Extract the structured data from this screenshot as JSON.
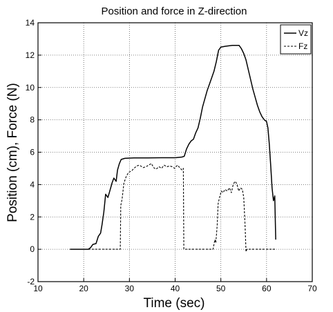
{
  "chart_data": {
    "type": "line",
    "title": "Position and force in Z-direction",
    "xlabel": "Time (sec)",
    "ylabel": "Position (cm), Force (N)",
    "xlim": [
      10,
      70
    ],
    "ylim": [
      -2,
      14
    ],
    "xticks": [
      10,
      20,
      30,
      40,
      50,
      60,
      70
    ],
    "yticks": [
      -2,
      0,
      2,
      4,
      6,
      8,
      10,
      12,
      14
    ],
    "grid": true,
    "legend_position": "top-right",
    "series": [
      {
        "name": "Vz",
        "line_style": "solid",
        "color": "#000000",
        "points": [
          [
            17,
            0
          ],
          [
            21,
            0
          ],
          [
            21.5,
            0.1
          ],
          [
            22,
            0.3
          ],
          [
            22.7,
            0.35
          ],
          [
            23.2,
            0.8
          ],
          [
            23.7,
            1.0
          ],
          [
            24,
            1.5
          ],
          [
            24.4,
            2.3
          ],
          [
            24.8,
            3.4
          ],
          [
            25.3,
            3.2
          ],
          [
            25.7,
            3.6
          ],
          [
            26.2,
            4.1
          ],
          [
            26.6,
            4.4
          ],
          [
            27.1,
            4.2
          ],
          [
            27.4,
            4.9
          ],
          [
            27.8,
            5.3
          ],
          [
            28.2,
            5.55
          ],
          [
            29,
            5.62
          ],
          [
            31,
            5.65
          ],
          [
            34,
            5.65
          ],
          [
            37,
            5.66
          ],
          [
            40,
            5.66
          ],
          [
            41.5,
            5.7
          ],
          [
            42,
            5.75
          ],
          [
            42.5,
            6.2
          ],
          [
            43,
            6.5
          ],
          [
            43.5,
            6.7
          ],
          [
            44,
            6.8
          ],
          [
            44.5,
            7.2
          ],
          [
            45,
            7.5
          ],
          [
            45.5,
            8.1
          ],
          [
            46,
            8.8
          ],
          [
            46.5,
            9.3
          ],
          [
            47,
            9.8
          ],
          [
            47.5,
            10.2
          ],
          [
            48,
            10.6
          ],
          [
            48.5,
            11.0
          ],
          [
            49,
            11.6
          ],
          [
            49.5,
            12.3
          ],
          [
            50,
            12.5
          ],
          [
            51,
            12.55
          ],
          [
            52.5,
            12.6
          ],
          [
            54,
            12.6
          ],
          [
            54.5,
            12.4
          ],
          [
            55,
            12.1
          ],
          [
            55.5,
            11.7
          ],
          [
            56,
            11.1
          ],
          [
            56.5,
            10.5
          ],
          [
            57,
            9.9
          ],
          [
            57.5,
            9.4
          ],
          [
            58,
            8.9
          ],
          [
            58.5,
            8.5
          ],
          [
            59,
            8.2
          ],
          [
            59.5,
            8.0
          ],
          [
            60,
            7.9
          ],
          [
            60.3,
            7.5
          ],
          [
            60.6,
            6.5
          ],
          [
            60.9,
            5.2
          ],
          [
            61.2,
            3.8
          ],
          [
            61.5,
            3.0
          ],
          [
            61.8,
            3.3
          ],
          [
            62,
            0.6
          ]
        ]
      },
      {
        "name": "Fz",
        "line_style": "dashed",
        "color": "#000000",
        "points": [
          [
            21,
            0
          ],
          [
            26,
            0
          ],
          [
            28,
            0
          ],
          [
            28.1,
            2.7
          ],
          [
            28.4,
            3.1
          ],
          [
            28.8,
            4.1
          ],
          [
            29.3,
            4.5
          ],
          [
            29.8,
            4.75
          ],
          [
            30.5,
            4.85
          ],
          [
            31,
            5.0
          ],
          [
            31.6,
            5.15
          ],
          [
            32.2,
            5.2
          ],
          [
            33,
            5.05
          ],
          [
            33.6,
            5.1
          ],
          [
            34.2,
            5.2
          ],
          [
            34.8,
            5.3
          ],
          [
            35.3,
            5.05
          ],
          [
            35.8,
            4.95
          ],
          [
            36.5,
            5.1
          ],
          [
            37,
            5.0
          ],
          [
            37.6,
            5.2
          ],
          [
            38.2,
            5.1
          ],
          [
            38.8,
            5.15
          ],
          [
            39.4,
            5.1
          ],
          [
            39.9,
            5.0
          ],
          [
            40.5,
            5.2
          ],
          [
            41.0,
            5.05
          ],
          [
            41.5,
            4.9
          ],
          [
            41.8,
            5.0
          ],
          [
            41.9,
            0
          ],
          [
            45,
            0
          ],
          [
            48.3,
            0
          ],
          [
            48.5,
            0.3
          ],
          [
            48.7,
            0.6
          ],
          [
            48.9,
            0.4
          ],
          [
            49.2,
            1.5
          ],
          [
            49.4,
            2.8
          ],
          [
            49.7,
            3.2
          ],
          [
            50.1,
            3.6
          ],
          [
            50.5,
            3.5
          ],
          [
            50.9,
            3.7
          ],
          [
            51.4,
            3.6
          ],
          [
            51.9,
            3.8
          ],
          [
            52.3,
            3.5
          ],
          [
            52.7,
            4.0
          ],
          [
            53.1,
            4.2
          ],
          [
            53.5,
            4.05
          ],
          [
            53.9,
            3.6
          ],
          [
            54.3,
            3.8
          ],
          [
            54.7,
            3.7
          ],
          [
            55,
            3.2
          ],
          [
            55.3,
            1.5
          ],
          [
            55.5,
            -0.15
          ],
          [
            55.7,
            0
          ],
          [
            58,
            0
          ],
          [
            62,
            0
          ]
        ]
      }
    ]
  }
}
